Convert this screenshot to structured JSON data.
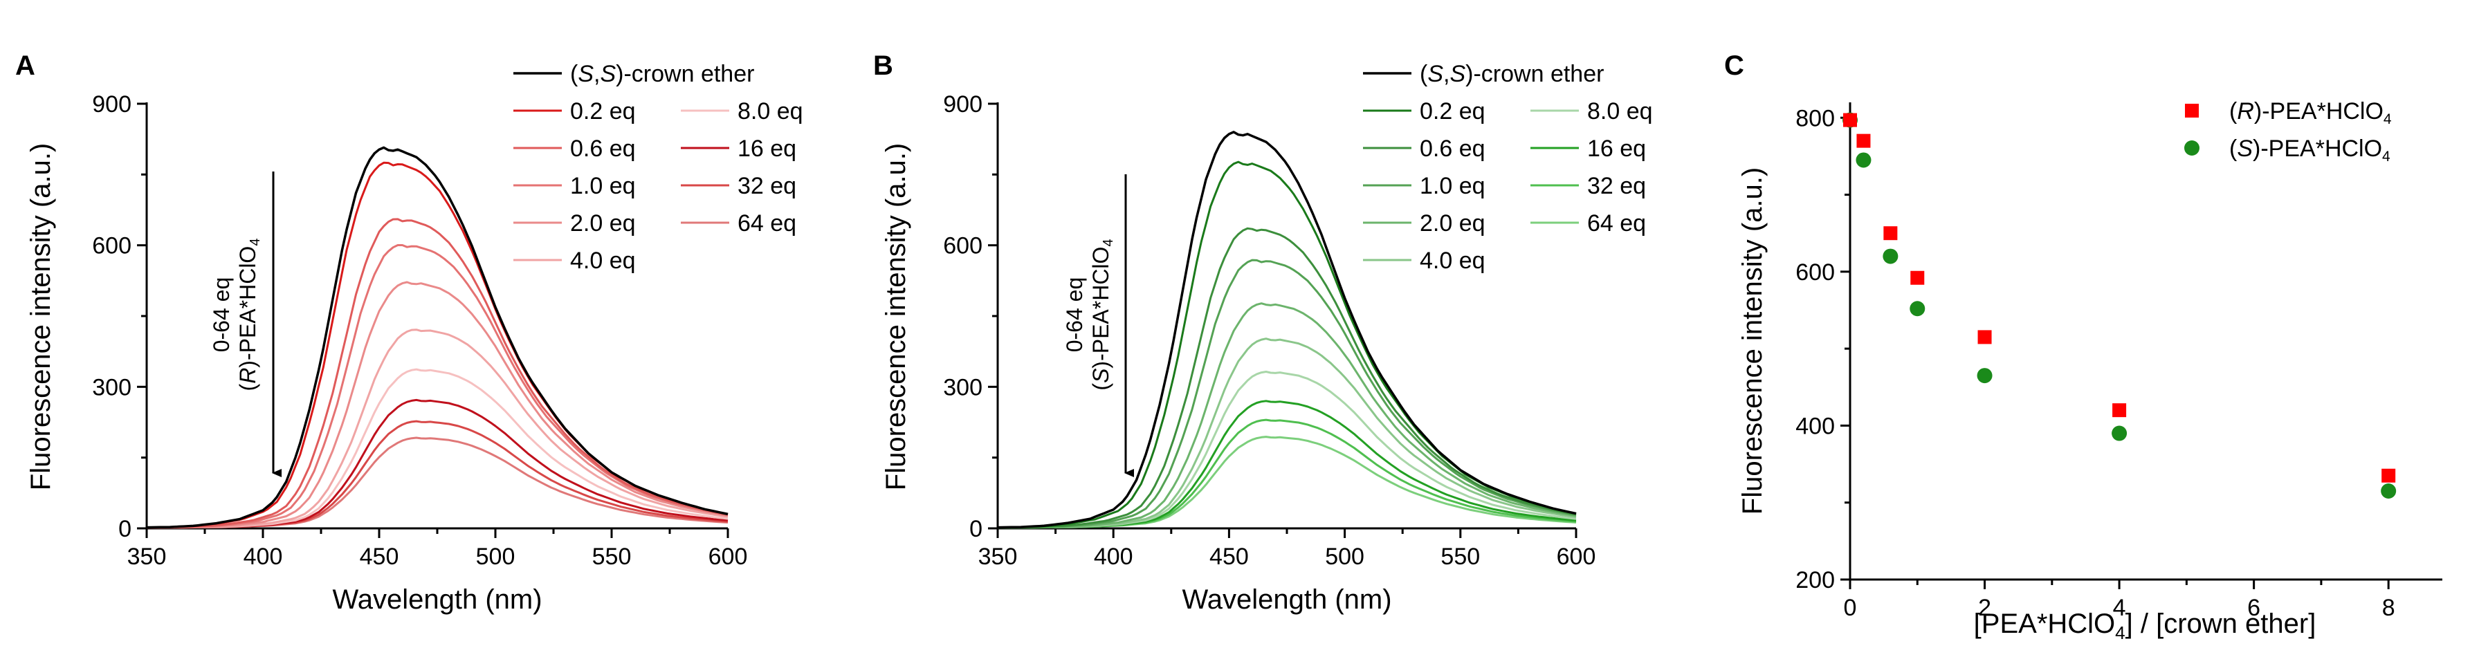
{
  "chart_data": [
    {
      "panel": "A",
      "type": "line",
      "xlabel": "Wavelength (nm)",
      "ylabel": "Fluorescence intensity (a.u.)",
      "xlim": [
        350,
        600
      ],
      "ylim": [
        0,
        900
      ],
      "xticks": [
        "350",
        "400",
        "450",
        "500",
        "550",
        "600"
      ],
      "yticks": [
        "0",
        "300",
        "600",
        "900"
      ],
      "annotation_lines": [
        "0-64 eq",
        "(R)-PEA*HClO4"
      ],
      "legend": {
        "title_entry": "(S,S)-crown ether",
        "entries": [
          "0.2 eq",
          "0.6 eq",
          "1.0 eq",
          "2.0 eq",
          "4.0 eq",
          "8.0 eq",
          "16 eq",
          "32 eq",
          "64 eq"
        ]
      },
      "series": [
        {
          "name": "(S,S)-crown ether",
          "peak": 805,
          "color": "#000000"
        },
        {
          "name": "0.2 eq",
          "peak": 775,
          "color": "#d91a1a"
        },
        {
          "name": "0.6 eq",
          "peak": 655,
          "color": "#e05a5a"
        },
        {
          "name": "1.0 eq",
          "peak": 600,
          "color": "#e57272"
        },
        {
          "name": "2.0 eq",
          "peak": 520,
          "color": "#ea8a8a"
        },
        {
          "name": "4.0 eq",
          "peak": 420,
          "color": "#f0a4a4"
        },
        {
          "name": "8.0 eq",
          "peak": 335,
          "color": "#f6c0c0"
        },
        {
          "name": "16 eq",
          "peak": 270,
          "color": "#c0101c"
        },
        {
          "name": "32 eq",
          "peak": 225,
          "color": "#d84848"
        },
        {
          "name": "64 eq",
          "peak": 190,
          "color": "#e07878"
        }
      ]
    },
    {
      "panel": "B",
      "type": "line",
      "xlabel": "Wavelength (nm)",
      "ylabel": "Fluorescence intensity (a.u.)",
      "xlim": [
        350,
        600
      ],
      "ylim": [
        0,
        900
      ],
      "xticks": [
        "350",
        "400",
        "450",
        "500",
        "550",
        "600"
      ],
      "yticks": [
        "0",
        "300",
        "600",
        "900"
      ],
      "annotation_lines": [
        "0-64 eq",
        "(S)-PEA*HClO4"
      ],
      "legend": {
        "title_entry": "(S,S)-crown ether",
        "entries": [
          "0.2 eq",
          "0.6 eq",
          "1.0 eq",
          "2.0 eq",
          "4.0 eq",
          "8.0 eq",
          "16 eq",
          "32 eq",
          "64 eq"
        ]
      },
      "series": [
        {
          "name": "(S,S)-crown ether",
          "peak": 838,
          "color": "#000000"
        },
        {
          "name": "0.2 eq",
          "peak": 775,
          "color": "#1a7a1a"
        },
        {
          "name": "0.6 eq",
          "peak": 635,
          "color": "#3c8f3c"
        },
        {
          "name": "1.0 eq",
          "peak": 568,
          "color": "#54a254"
        },
        {
          "name": "2.0 eq",
          "peak": 475,
          "color": "#6cb46c"
        },
        {
          "name": "4.0 eq",
          "peak": 400,
          "color": "#8ac68a"
        },
        {
          "name": "8.0 eq",
          "peak": 330,
          "color": "#a8d6a8"
        },
        {
          "name": "16 eq",
          "peak": 268,
          "color": "#23a023"
        },
        {
          "name": "32 eq",
          "peak": 228,
          "color": "#4fbf4f"
        },
        {
          "name": "64 eq",
          "peak": 192,
          "color": "#7ccf7c"
        }
      ]
    },
    {
      "panel": "C",
      "type": "scatter",
      "xlabel": "[PEA*HClO4] / [crown ether]",
      "ylabel": "Fluorescence intensity (a.u.)",
      "xlim": [
        0,
        8.8
      ],
      "ylim": [
        200,
        820
      ],
      "xticks": [
        "0",
        "2",
        "4",
        "6",
        "8"
      ],
      "yticks": [
        "200",
        "400",
        "600",
        "800"
      ],
      "series": [
        {
          "name": "(R)-PEA*HClO4",
          "marker": "square",
          "color": "#ff0000",
          "x": [
            0,
            0.2,
            0.6,
            1.0,
            2.0,
            4.0,
            8.0
          ],
          "y": [
            797,
            770,
            650,
            592,
            515,
            420,
            335
          ]
        },
        {
          "name": "(S)-PEA*HClO4",
          "marker": "circle",
          "color": "#1a8a1a",
          "x": [
            0,
            0.2,
            0.6,
            1.0,
            2.0,
            4.0,
            8.0
          ],
          "y": [
            797,
            745,
            620,
            552,
            465,
            390,
            315
          ]
        }
      ]
    }
  ]
}
